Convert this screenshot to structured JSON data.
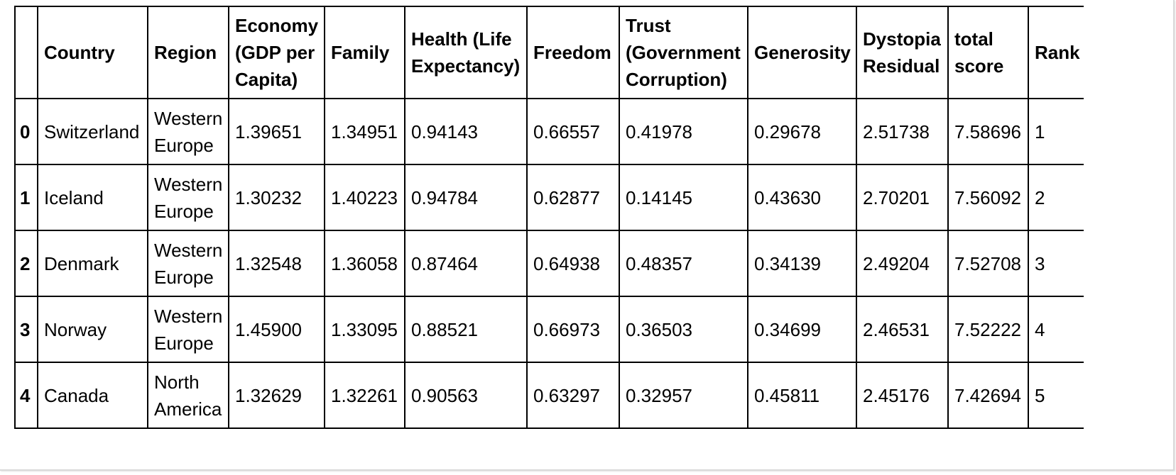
{
  "table": {
    "columns": [
      "",
      "Country",
      "Region",
      "Economy (GDP per Capita)",
      "Family",
      "Health (Life Expectancy)",
      "Freedom",
      "Trust (Government Corruption)",
      "Generosity",
      "Dystopia Residual",
      "total score",
      "Rank"
    ],
    "rows": [
      [
        "0",
        "Switzerland",
        "Western Europe",
        "1.39651",
        "1.34951",
        "0.94143",
        "0.66557",
        "0.41978",
        "0.29678",
        "2.51738",
        "7.58696",
        "1"
      ],
      [
        "1",
        "Iceland",
        "Western Europe",
        "1.30232",
        "1.40223",
        "0.94784",
        "0.62877",
        "0.14145",
        "0.43630",
        "2.70201",
        "7.56092",
        "2"
      ],
      [
        "2",
        "Denmark",
        "Western Europe",
        "1.32548",
        "1.36058",
        "0.87464",
        "0.64938",
        "0.48357",
        "0.34139",
        "2.49204",
        "7.52708",
        "3"
      ],
      [
        "3",
        "Norway",
        "Western Europe",
        "1.45900",
        "1.33095",
        "0.88521",
        "0.66973",
        "0.36503",
        "0.34699",
        "2.46531",
        "7.52222",
        "4"
      ],
      [
        "4",
        "Canada",
        "North America",
        "1.32629",
        "1.32261",
        "0.90563",
        "0.63297",
        "0.32957",
        "0.45811",
        "2.45176",
        "7.42694",
        "5"
      ]
    ]
  }
}
